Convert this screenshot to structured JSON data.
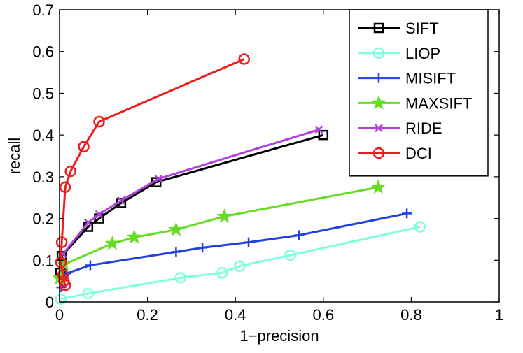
{
  "chart_data": {
    "type": "line",
    "title": "",
    "xlabel": "1−precision",
    "ylabel": "recall",
    "xlim": [
      0,
      1
    ],
    "ylim": [
      0,
      0.7
    ],
    "xticks": [
      0,
      0.2,
      0.4,
      0.6,
      0.8,
      1
    ],
    "xtick_labels": [
      "0",
      "0.2",
      "0.4",
      "0.6",
      "0.8",
      "1"
    ],
    "yticks": [
      0,
      0.1,
      0.2,
      0.3,
      0.4,
      0.5,
      0.6,
      0.7
    ],
    "ytick_labels": [
      "0",
      "0.1",
      "0.2",
      "0.3",
      "0.4",
      "0.5",
      "0.6",
      "0.7"
    ],
    "grid": false,
    "legend_position": "top-right",
    "series": [
      {
        "name": "SIFT",
        "color": "#000000",
        "marker": "square",
        "x": [
          0.002,
          0.005,
          0.065,
          0.09,
          0.14,
          0.22,
          0.6
        ],
        "y": [
          0.07,
          0.11,
          0.18,
          0.2,
          0.237,
          0.287,
          0.4
        ]
      },
      {
        "name": "LIOP",
        "color": "#7fffe0",
        "marker": "circle",
        "x": [
          0.003,
          0.065,
          0.275,
          0.37,
          0.41,
          0.525,
          0.82
        ],
        "y": [
          0.007,
          0.02,
          0.058,
          0.07,
          0.086,
          0.112,
          0.18
        ]
      },
      {
        "name": "MISIFT",
        "color": "#2040e0",
        "marker": "plus",
        "x": [
          0.004,
          0.015,
          0.07,
          0.265,
          0.325,
          0.43,
          0.545,
          0.79
        ],
        "y": [
          0.035,
          0.068,
          0.088,
          0.12,
          0.13,
          0.143,
          0.16,
          0.212
        ]
      },
      {
        "name": "MAXSIFT",
        "color": "#66dd22",
        "marker": "star",
        "x": [
          0.0,
          0.01,
          0.12,
          0.17,
          0.265,
          0.375,
          0.725
        ],
        "y": [
          0.057,
          0.09,
          0.14,
          0.155,
          0.173,
          0.205,
          0.275
        ]
      },
      {
        "name": "RIDE",
        "color": "#b040e0",
        "marker": "x",
        "x": [
          0.008,
          0.065,
          0.09,
          0.14,
          0.225,
          0.59
        ],
        "y": [
          0.115,
          0.19,
          0.21,
          0.243,
          0.295,
          0.413
        ]
      },
      {
        "name": "DCI",
        "color": "#ee1c1c",
        "marker": "circle",
        "x": [
          0.013,
          0.01,
          0.008,
          0.003,
          0.005,
          0.013,
          0.025,
          0.055,
          0.09,
          0.42
        ],
        "y": [
          0.04,
          0.05,
          0.065,
          0.095,
          0.143,
          0.275,
          0.313,
          0.372,
          0.432,
          0.582
        ]
      }
    ]
  }
}
